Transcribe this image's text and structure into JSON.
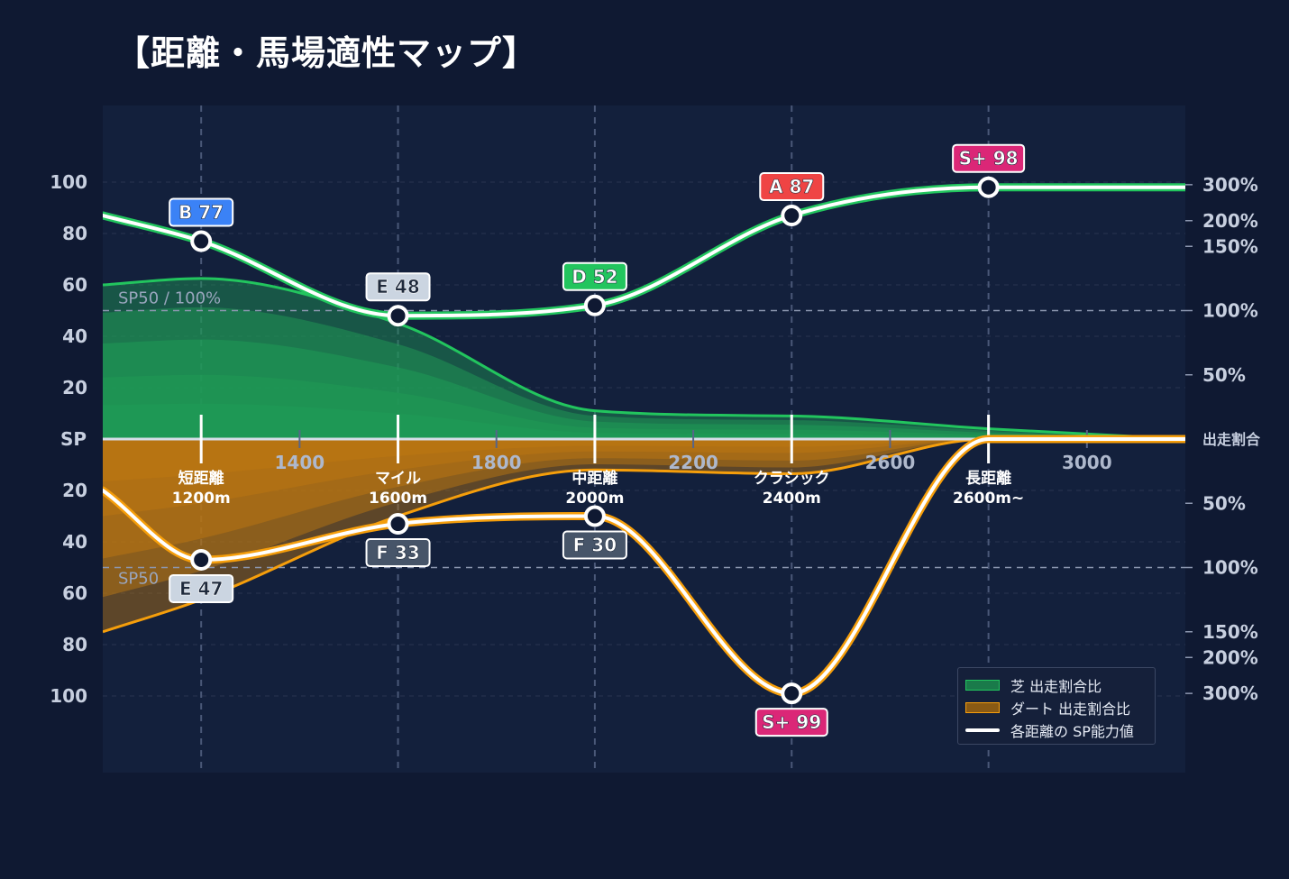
{
  "title": "【距離・馬場適性マップ】",
  "colors": {
    "background": "#0f1932",
    "plot_bg": "#13203c",
    "turf": "#22c55e",
    "dirt": "#f59e0b",
    "grid": "#3a4763"
  },
  "chart_data": {
    "type": "area",
    "x_ticks": [
      1400,
      1800,
      2200,
      2600,
      3000
    ],
    "xlim": [
      1000,
      3200
    ],
    "sp_axis": {
      "center_label": "SP",
      "ticks": [
        20,
        40,
        60,
        80,
        100
      ]
    },
    "ratio_axis": {
      "center_label": "出走割合",
      "ticks_pct": [
        "50%",
        "100%",
        "150%",
        "200%",
        "300%"
      ],
      "tick_values": [
        50,
        100,
        150,
        200,
        300
      ]
    },
    "reference": {
      "turf_label": "SP50 / 100%",
      "dirt_label": "SP50",
      "sp": 50
    },
    "categories": [
      {
        "name": "短距離",
        "dist": "1200m",
        "x": 1200
      },
      {
        "name": "マイル",
        "dist": "1600m",
        "x": 1600
      },
      {
        "name": "中距離",
        "dist": "2000m",
        "x": 2000
      },
      {
        "name": "クラシック",
        "dist": "2400m",
        "x": 2400
      },
      {
        "name": "長距離",
        "dist": "2600m~",
        "x": 2800
      }
    ],
    "turf_sp": {
      "points": [
        {
          "x": 1200,
          "sp": 77,
          "grade": "B 77",
          "color": "#3b82f6"
        },
        {
          "x": 1600,
          "sp": 48,
          "grade": "E 48",
          "color": "#cbd5e1"
        },
        {
          "x": 2000,
          "sp": 52,
          "grade": "D 52",
          "color": "#22c55e"
        },
        {
          "x": 2400,
          "sp": 87,
          "grade": "A 87",
          "color": "#ef4444"
        },
        {
          "x": 2800,
          "sp": 98,
          "grade": "S+ 98",
          "color": "#db2777"
        }
      ]
    },
    "dirt_sp": {
      "points": [
        {
          "x": 1200,
          "sp": 47,
          "grade": "E 47",
          "color": "#cbd5e1"
        },
        {
          "x": 1600,
          "sp": 33,
          "grade": "F 33",
          "color": "#475569"
        },
        {
          "x": 2000,
          "sp": 30,
          "grade": "F 30",
          "color": "#475569"
        },
        {
          "x": 2400,
          "sp": 99,
          "grade": "S+ 99",
          "color": "#db2777"
        },
        {
          "x": 2800,
          "sp": 0,
          "grade": "",
          "color": ""
        }
      ]
    },
    "turf_ratio_pct": {
      "x": [
        1000,
        1200,
        1600,
        2000,
        2400,
        2800,
        3200
      ],
      "values": [
        120,
        125,
        90,
        22,
        18,
        8,
        0
      ]
    },
    "dirt_ratio_pct": {
      "x": [
        1000,
        1200,
        1600,
        2000,
        2400,
        2800,
        3200
      ],
      "values": [
        150,
        125,
        60,
        24,
        27,
        0,
        0
      ]
    },
    "legend": {
      "position": "bottom-right",
      "items": [
        {
          "label": "芝 出走割合比",
          "kind": "turf"
        },
        {
          "label": "ダート 出走割合比",
          "kind": "dirt"
        },
        {
          "label": "各距離の SP能力値",
          "kind": "line"
        }
      ]
    }
  }
}
